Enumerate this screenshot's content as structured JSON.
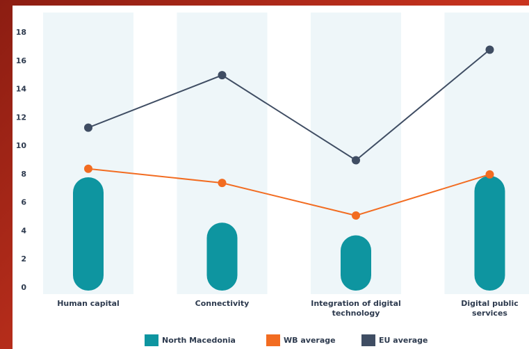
{
  "chart_data": {
    "type": "bar",
    "categories": [
      "Human capital",
      "Connectivity",
      "Integration of digital technology",
      "Digital public services"
    ],
    "series": [
      {
        "name": "North Macedonia",
        "color": "#0e95a0",
        "type": "bar",
        "values": [
          7.8,
          4.6,
          3.7,
          7.9
        ]
      },
      {
        "name": "WB average",
        "color": "#f26c21",
        "type": "line",
        "values": [
          8.4,
          7.4,
          5.1,
          8.0
        ]
      },
      {
        "name": "EU average",
        "color": "#3f4d63",
        "type": "line",
        "values": [
          11.3,
          15.0,
          9.0,
          16.8
        ]
      }
    ],
    "ylim": [
      0,
      18
    ],
    "yticks": [
      0,
      2,
      4,
      6,
      8,
      10,
      12,
      14,
      16,
      18
    ],
    "grid": false
  }
}
